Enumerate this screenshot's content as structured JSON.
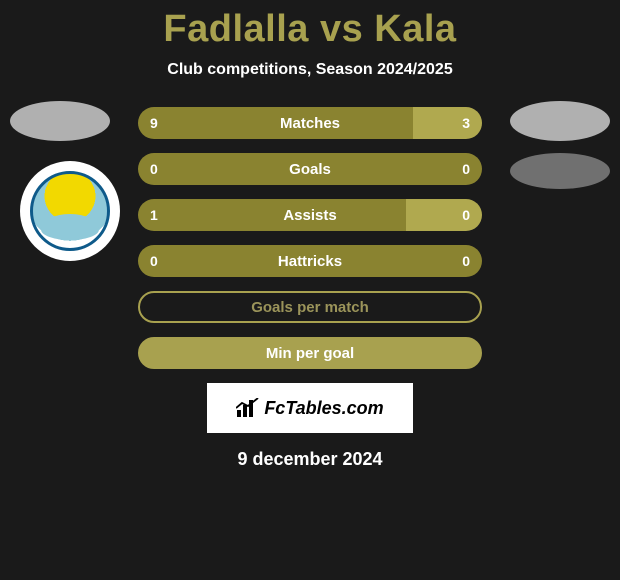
{
  "title": "Fadlalla vs Kala",
  "subtitle": "Club competitions, Season 2024/2025",
  "date": "9 december 2024",
  "watermark": "FcTables.com",
  "colors": {
    "olive_dark": "#8a8330",
    "olive_light": "#b0a94f",
    "border": "#a8a14f",
    "text_muted": "#9b945a"
  },
  "rows": [
    {
      "label": "Matches",
      "left_val": "9",
      "right_val": "3",
      "left_pct": 80,
      "right_pct": 20,
      "left_color": "#8a8330",
      "right_color": "#b0a94f",
      "type": "split"
    },
    {
      "label": "Goals",
      "left_val": "0",
      "right_val": "0",
      "left_pct": 50,
      "right_pct": 50,
      "left_color": "#8a8330",
      "right_color": "#8a8330",
      "type": "split"
    },
    {
      "label": "Assists",
      "left_val": "1",
      "right_val": "0",
      "left_pct": 78,
      "right_pct": 22,
      "left_color": "#8a8330",
      "right_color": "#b0a94f",
      "type": "split"
    },
    {
      "label": "Hattricks",
      "left_val": "0",
      "right_val": "0",
      "left_pct": 50,
      "right_pct": 50,
      "left_color": "#8a8330",
      "right_color": "#8a8330",
      "type": "split"
    },
    {
      "label": "Goals per match",
      "type": "empty",
      "border_color": "#a8a14f",
      "text_color": "#9b945a"
    },
    {
      "label": "Min per goal",
      "type": "filled",
      "fill_color": "#a8a14f",
      "text_color": "#ffffff"
    }
  ]
}
